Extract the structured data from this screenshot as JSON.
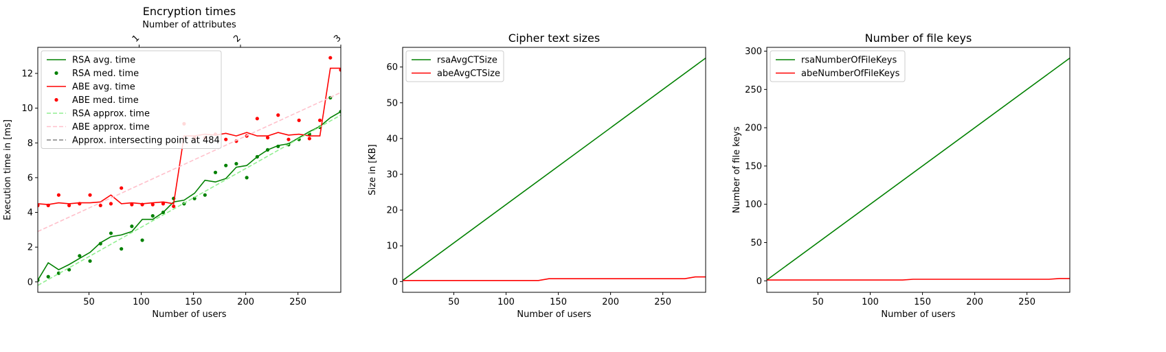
{
  "chart_data": [
    {
      "type": "line",
      "title": "Encryption times",
      "xlabel": "Number of users",
      "ylabel": "Execution time in [ms]",
      "xlim": [
        1,
        291
      ],
      "ylim": [
        -0.6,
        13.5
      ],
      "xticks": [
        50,
        100,
        150,
        200,
        250
      ],
      "yticks": [
        0,
        2,
        4,
        6,
        8,
        10,
        12
      ],
      "secondary_xaxis": {
        "label": "Number of attributes",
        "ticks": [
          {
            "label": "1",
            "at_users": 98
          },
          {
            "label": "2",
            "at_users": 195
          },
          {
            "label": "3",
            "at_users": 291
          }
        ]
      },
      "legend_position": "upper-left",
      "series": [
        {
          "name": "RSA avg. time",
          "style": "line",
          "color": "#008000",
          "x": [
            1,
            11,
            21,
            31,
            41,
            51,
            61,
            71,
            81,
            91,
            101,
            111,
            121,
            131,
            141,
            151,
            161,
            171,
            181,
            191,
            201,
            211,
            221,
            231,
            241,
            251,
            261,
            271,
            281,
            291
          ],
          "y": [
            0.1,
            1.1,
            0.7,
            1.0,
            1.35,
            1.7,
            2.25,
            2.6,
            2.7,
            2.9,
            3.6,
            3.6,
            4.0,
            4.6,
            4.7,
            5.1,
            5.85,
            5.75,
            5.95,
            6.6,
            6.7,
            7.2,
            7.6,
            7.85,
            7.95,
            8.3,
            8.65,
            8.95,
            9.45,
            9.8
          ]
        },
        {
          "name": "RSA med. time",
          "style": "points",
          "color": "#008000",
          "x": [
            1,
            11,
            21,
            31,
            41,
            51,
            61,
            71,
            81,
            91,
            101,
            111,
            121,
            131,
            141,
            151,
            161,
            171,
            181,
            191,
            201,
            211,
            221,
            231,
            241,
            251,
            261,
            271,
            281,
            291
          ],
          "y": [
            0.1,
            0.3,
            0.5,
            0.7,
            1.5,
            1.2,
            2.2,
            2.8,
            1.9,
            3.2,
            2.4,
            3.8,
            4.0,
            4.8,
            4.5,
            4.8,
            5.0,
            6.3,
            6.7,
            6.8,
            6.0,
            7.2,
            7.6,
            7.8,
            7.9,
            8.2,
            8.5,
            8.9,
            10.6,
            9.8
          ]
        },
        {
          "name": "ABE avg. time",
          "style": "line",
          "color": "#ff0000",
          "x": [
            1,
            11,
            21,
            31,
            41,
            51,
            61,
            71,
            81,
            91,
            101,
            111,
            121,
            131,
            141,
            151,
            161,
            171,
            181,
            191,
            201,
            211,
            221,
            231,
            241,
            251,
            261,
            271,
            281,
            291
          ],
          "y": [
            4.5,
            4.45,
            4.55,
            4.5,
            4.55,
            4.55,
            4.6,
            5.0,
            4.5,
            4.55,
            4.5,
            4.55,
            4.6,
            4.5,
            8.4,
            8.4,
            8.5,
            8.45,
            8.55,
            8.4,
            8.6,
            8.4,
            8.4,
            8.6,
            8.45,
            8.5,
            8.4,
            8.4,
            12.3,
            12.3
          ]
        },
        {
          "name": "ABE med. time",
          "style": "points",
          "color": "#ff0000",
          "x": [
            1,
            11,
            21,
            31,
            41,
            51,
            61,
            71,
            81,
            91,
            101,
            111,
            121,
            131,
            141,
            151,
            161,
            171,
            181,
            191,
            201,
            211,
            221,
            231,
            241,
            251,
            261,
            271,
            281,
            291
          ],
          "y": [
            4.4,
            4.4,
            5.0,
            4.4,
            4.5,
            5.0,
            4.4,
            4.5,
            5.4,
            4.45,
            4.45,
            4.45,
            4.5,
            4.35,
            9.1,
            8.3,
            8.3,
            8.5,
            8.2,
            8.1,
            8.4,
            9.4,
            8.3,
            9.6,
            8.2,
            9.3,
            8.25,
            9.3,
            12.9,
            12.2
          ]
        },
        {
          "name": "RSA approx. time",
          "style": "dashed",
          "color": "#90ee90",
          "x": [
            1,
            291
          ],
          "y": [
            -0.2,
            9.6
          ]
        },
        {
          "name": "ABE approx. time",
          "style": "dashed",
          "color": "#ffc0cb",
          "x": [
            1,
            291
          ],
          "y": [
            2.9,
            10.9
          ]
        },
        {
          "name": "Approx. intersecting point at 484",
          "style": "dashed",
          "color": "#808080",
          "x": [],
          "y": []
        }
      ]
    },
    {
      "type": "line",
      "title": "Cipher text sizes",
      "xlabel": "Number of users",
      "ylabel": "Size in [KB]",
      "xlim": [
        1,
        291
      ],
      "ylim": [
        -3,
        65.5
      ],
      "xticks": [
        50,
        100,
        150,
        200,
        250
      ],
      "yticks": [
        0,
        10,
        20,
        30,
        40,
        50,
        60
      ],
      "legend_position": "upper-left",
      "series": [
        {
          "name": "rsaAvgCTSize",
          "style": "line",
          "color": "#008000",
          "x": [
            1,
            291
          ],
          "y": [
            0.3,
            62.5
          ]
        },
        {
          "name": "abeAvgCTSize",
          "style": "line",
          "color": "#ff0000",
          "x": [
            1,
            131,
            141,
            271,
            281,
            291
          ],
          "y": [
            0.3,
            0.3,
            0.8,
            0.8,
            1.3,
            1.3
          ]
        }
      ]
    },
    {
      "type": "line",
      "title": "Number of file keys",
      "xlabel": "Number of users",
      "ylabel": "Number of file keys",
      "xlim": [
        1,
        291
      ],
      "ylim": [
        -15,
        305
      ],
      "xticks": [
        50,
        100,
        150,
        200,
        250
      ],
      "yticks": [
        0,
        50,
        100,
        150,
        200,
        250,
        300
      ],
      "legend_position": "upper-left",
      "series": [
        {
          "name": "rsaNumberOfFileKeys",
          "style": "line",
          "color": "#008000",
          "x": [
            1,
            291
          ],
          "y": [
            1,
            291
          ]
        },
        {
          "name": "abeNumberOfFileKeys",
          "style": "line",
          "color": "#ff0000",
          "x": [
            1,
            131,
            141,
            271,
            281,
            291
          ],
          "y": [
            1,
            1,
            2,
            2,
            3,
            3
          ]
        }
      ]
    }
  ]
}
